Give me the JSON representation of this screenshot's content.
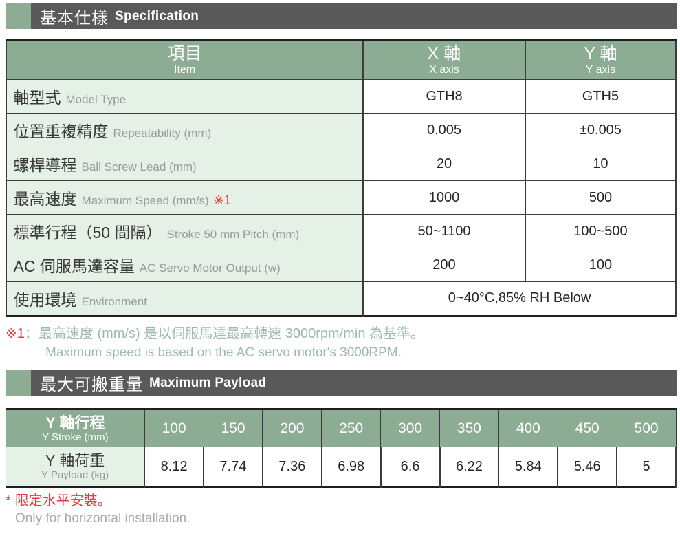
{
  "section1": {
    "title_zh": "基本仕樣",
    "title_en": "Specification"
  },
  "spec_table": {
    "header": {
      "item_zh": "項目",
      "item_en": "Item",
      "x_zh": "X 軸",
      "x_en": "X axis",
      "y_zh": "Y 軸",
      "y_en": "Y axis"
    },
    "rows": [
      {
        "zh": "軸型式",
        "en": "Model Type",
        "x": "GTH8",
        "y": "GTH5"
      },
      {
        "zh": "位置重複精度",
        "en": "Repeatability (mm)",
        "x": "0.005",
        "y": "±0.005"
      },
      {
        "zh": "螺桿導程",
        "en": "Ball Screw Lead (mm)",
        "x": "20",
        "y": "10"
      },
      {
        "zh": "最高速度",
        "en": "Maximum Speed (mm/s)",
        "note_ref": "※1",
        "x": "1000",
        "y": "500"
      },
      {
        "zh": "標準行程（50 間隔）",
        "en": "Stroke 50 mm Pitch (mm)",
        "x": "50~1100",
        "y": "100~500"
      },
      {
        "zh": "AC 伺服馬達容量",
        "en": "AC Servo Motor Output (w)",
        "x": "200",
        "y": "100"
      },
      {
        "zh": "使用環境",
        "en": "Environment",
        "span": "0~40°C,85% RH Below"
      }
    ]
  },
  "note1": {
    "marker": "※1",
    "zh": "：最高速度 (mm/s) 是以伺服馬達最高轉速 3000rpm/min 為基準。",
    "en": "Maximum speed is based on the AC servo motor's 3000RPM."
  },
  "section2": {
    "title_zh": "最大可搬重量",
    "title_en": "Maximum Payload"
  },
  "payload_table": {
    "row_header": {
      "zh": "Y 軸行程",
      "en": "Y Stroke (mm)"
    },
    "strokes": [
      "100",
      "150",
      "200",
      "250",
      "300",
      "350",
      "400",
      "450",
      "500"
    ],
    "row_label": {
      "zh": "Y 軸荷重",
      "en": "Y Payload (kg)"
    },
    "payloads": [
      "8.12",
      "7.74",
      "7.36",
      "6.98",
      "6.6",
      "6.22",
      "5.84",
      "5.46",
      "5"
    ]
  },
  "footnote": {
    "marker": "*",
    "zh": "限定水平安裝。",
    "en": "Only for horizontal installation."
  },
  "colors": {
    "accent_green": "#8cac94",
    "light_green": "#e5f0e7",
    "bar_dark": "#59595b",
    "note_red": "#e23b3f",
    "note_sage": "#9fbaa8",
    "sub_label_gray": "#97999c"
  }
}
